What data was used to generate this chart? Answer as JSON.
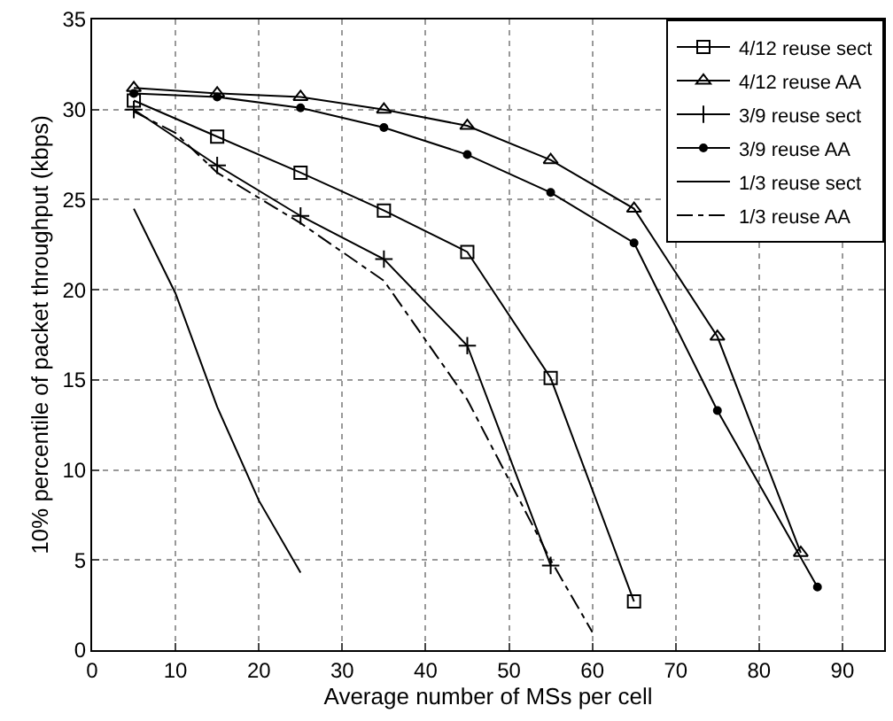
{
  "chart_data": {
    "type": "line",
    "xlabel": "Average number of MSs per cell",
    "ylabel": "10% percentile of packet throughput (kbps)",
    "xlim": [
      0,
      95
    ],
    "xticks": [
      0,
      10,
      20,
      30,
      40,
      50,
      60,
      70,
      80,
      90
    ],
    "ylim": [
      0,
      35
    ],
    "yticks": [
      0,
      5,
      10,
      15,
      20,
      25,
      30,
      35
    ],
    "grid": true,
    "legend": "top right",
    "series": [
      {
        "name": "4/12 reuse sect",
        "color": "#000000",
        "marker": "square",
        "line_style": "solid",
        "x": [
          5,
          15,
          25,
          35,
          45,
          55,
          65
        ],
        "values": [
          30.5,
          28.5,
          26.5,
          24.4,
          22.1,
          15.1,
          2.7
        ]
      },
      {
        "name": "4/12 reuse AA",
        "color": "#000000",
        "marker": "triangle",
        "line_style": "solid",
        "x": [
          5,
          15,
          25,
          35,
          45,
          55,
          65,
          75,
          85
        ],
        "values": [
          31.2,
          30.9,
          30.7,
          30.0,
          29.1,
          27.2,
          24.5,
          17.4,
          5.4
        ]
      },
      {
        "name": "3/9 reuse sect",
        "color": "#000000",
        "marker": "cross",
        "line_style": "solid",
        "x": [
          5,
          15,
          25,
          35,
          45,
          55
        ],
        "values": [
          30.0,
          26.9,
          24.1,
          21.7,
          16.9,
          4.7
        ]
      },
      {
        "name": "3/9 reuse AA",
        "color": "#000000",
        "marker": "circle",
        "line_style": "solid",
        "x": [
          5,
          15,
          25,
          35,
          45,
          55,
          65,
          75,
          87
        ],
        "values": [
          30.9,
          30.7,
          30.1,
          29.0,
          27.5,
          25.4,
          22.6,
          13.3,
          3.5
        ]
      },
      {
        "name": "1/3 reuse sect",
        "color": "#000000",
        "marker": "none",
        "line_style": "solid",
        "x": [
          5,
          10,
          15,
          20,
          25
        ],
        "values": [
          24.5,
          19.8,
          13.5,
          8.3,
          4.3
        ]
      },
      {
        "name": "1/3 reuse AA",
        "color": "#000000",
        "marker": "none",
        "line_style": "dashdot",
        "x": [
          5,
          10,
          15,
          25,
          35,
          45,
          55,
          60
        ],
        "values": [
          29.9,
          28.7,
          26.5,
          23.7,
          20.5,
          13.9,
          5.0,
          1.0
        ]
      }
    ]
  }
}
